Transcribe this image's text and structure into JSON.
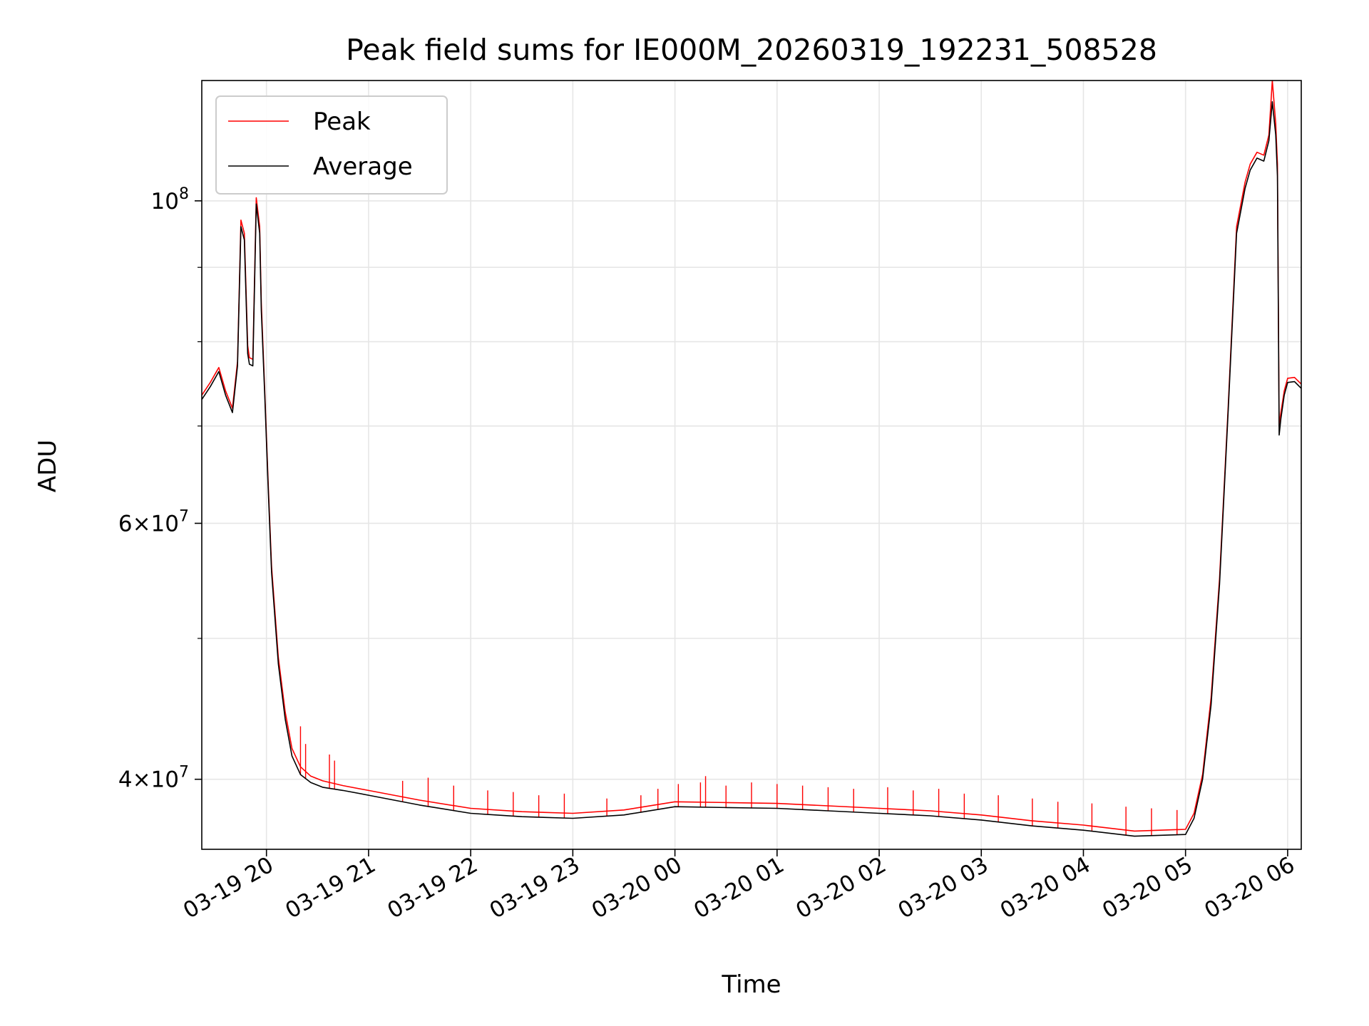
{
  "chart_data": {
    "type": "line",
    "title": "Peak field sums for IE000M_20260319_192231_508528",
    "xlabel": "Time",
    "ylabel": "ADU",
    "y_scale": "log",
    "ylim": [
      35800000,
      121000000
    ],
    "xlim": [
      "2026-03-19 19:22",
      "2026-03-20 06:08"
    ],
    "grid": true,
    "legend_position": "top-left",
    "x_ticks": [
      {
        "t": "2026-03-19 20:00",
        "label": "03-19 20"
      },
      {
        "t": "2026-03-19 21:00",
        "label": "03-19 21"
      },
      {
        "t": "2026-03-19 22:00",
        "label": "03-19 22"
      },
      {
        "t": "2026-03-19 23:00",
        "label": "03-19 23"
      },
      {
        "t": "2026-03-20 00:00",
        "label": "03-20 00"
      },
      {
        "t": "2026-03-20 01:00",
        "label": "03-20 01"
      },
      {
        "t": "2026-03-20 02:00",
        "label": "03-20 02"
      },
      {
        "t": "2026-03-20 03:00",
        "label": "03-20 03"
      },
      {
        "t": "2026-03-20 04:00",
        "label": "03-20 04"
      },
      {
        "t": "2026-03-20 05:00",
        "label": "03-20 05"
      },
      {
        "t": "2026-03-20 06:00",
        "label": "03-20 06"
      }
    ],
    "y_major_ticks": [
      {
        "value": 40000000,
        "mantissa": "4",
        "base": "10",
        "exp": "7"
      },
      {
        "value": 60000000,
        "mantissa": "6",
        "base": "10",
        "exp": "7"
      },
      {
        "value": 100000000,
        "mantissa": "",
        "base": "10",
        "exp": "8"
      }
    ],
    "y_minor_ticks": [
      50000000,
      70000000,
      80000000,
      90000000
    ],
    "series": [
      {
        "name": "Peak",
        "color": "#ff0000",
        "x": [
          "2026-03-19 19:22",
          "2026-03-19 19:27",
          "2026-03-19 19:32",
          "2026-03-19 19:36",
          "2026-03-19 19:40",
          "2026-03-19 19:43",
          "2026-03-19 19:45",
          "2026-03-19 19:47",
          "2026-03-19 19:49",
          "2026-03-19 19:50",
          "2026-03-19 19:52",
          "2026-03-19 19:54",
          "2026-03-19 19:56",
          "2026-03-19 19:57",
          "2026-03-19 19:59",
          "2026-03-19 20:01",
          "2026-03-19 20:03",
          "2026-03-19 20:07",
          "2026-03-19 20:11",
          "2026-03-19 20:15",
          "2026-03-19 20:20",
          "2026-03-19 20:26",
          "2026-03-19 20:33",
          "2026-03-19 20:45",
          "2026-03-19 21:00",
          "2026-03-19 21:30",
          "2026-03-19 22:00",
          "2026-03-19 22:30",
          "2026-03-19 23:00",
          "2026-03-19 23:30",
          "2026-03-20 00:00",
          "2026-03-20 00:30",
          "2026-03-20 01:00",
          "2026-03-20 01:30",
          "2026-03-20 02:00",
          "2026-03-20 02:30",
          "2026-03-20 03:00",
          "2026-03-20 03:30",
          "2026-03-20 04:00",
          "2026-03-20 04:30",
          "2026-03-20 05:00",
          "2026-03-20 05:05",
          "2026-03-20 05:10",
          "2026-03-20 05:15",
          "2026-03-20 05:20",
          "2026-03-20 05:25",
          "2026-03-20 05:30",
          "2026-03-20 05:35",
          "2026-03-20 05:38",
          "2026-03-20 05:42",
          "2026-03-20 05:46",
          "2026-03-20 05:49",
          "2026-03-20 05:51",
          "2026-03-20 05:53",
          "2026-03-20 05:54",
          "2026-03-20 05:55",
          "2026-03-20 05:56",
          "2026-03-20 05:58",
          "2026-03-20 06:00",
          "2026-03-20 06:04",
          "2026-03-20 06:08"
        ],
        "values": [
          73500000,
          75000000,
          76800000,
          74000000,
          72000000,
          77500000,
          97000000,
          95000000,
          79500000,
          78000000,
          77800000,
          100500000,
          96000000,
          85000000,
          74000000,
          64000000,
          56000000,
          48500000,
          44500000,
          42000000,
          40800000,
          40200000,
          39900000,
          39600000,
          39300000,
          38700000,
          38200000,
          38000000,
          37900000,
          38100000,
          38600000,
          38550000,
          38500000,
          38350000,
          38200000,
          38050000,
          37800000,
          37450000,
          37200000,
          36850000,
          36950000,
          37900000,
          40300000,
          45500000,
          55000000,
          72000000,
          96000000,
          103000000,
          106000000,
          108000000,
          107500000,
          111000000,
          121000000,
          113000000,
          106000000,
          70000000,
          71500000,
          74000000,
          75500000,
          75600000,
          74800000
        ]
      },
      {
        "name": "Average",
        "color": "#000000",
        "x": [
          "2026-03-19 19:22",
          "2026-03-19 19:27",
          "2026-03-19 19:32",
          "2026-03-19 19:36",
          "2026-03-19 19:40",
          "2026-03-19 19:43",
          "2026-03-19 19:45",
          "2026-03-19 19:47",
          "2026-03-19 19:49",
          "2026-03-19 19:50",
          "2026-03-19 19:52",
          "2026-03-19 19:54",
          "2026-03-19 19:56",
          "2026-03-19 19:57",
          "2026-03-19 19:59",
          "2026-03-19 20:01",
          "2026-03-19 20:03",
          "2026-03-19 20:07",
          "2026-03-19 20:11",
          "2026-03-19 20:15",
          "2026-03-19 20:20",
          "2026-03-19 20:26",
          "2026-03-19 20:33",
          "2026-03-19 20:45",
          "2026-03-19 21:00",
          "2026-03-19 21:30",
          "2026-03-19 22:00",
          "2026-03-19 22:30",
          "2026-03-19 23:00",
          "2026-03-19 23:30",
          "2026-03-20 00:00",
          "2026-03-20 00:30",
          "2026-03-20 01:00",
          "2026-03-20 01:30",
          "2026-03-20 02:00",
          "2026-03-20 02:30",
          "2026-03-20 03:00",
          "2026-03-20 03:30",
          "2026-03-20 04:00",
          "2026-03-20 04:30",
          "2026-03-20 05:00",
          "2026-03-20 05:05",
          "2026-03-20 05:10",
          "2026-03-20 05:15",
          "2026-03-20 05:20",
          "2026-03-20 05:25",
          "2026-03-20 05:30",
          "2026-03-20 05:35",
          "2026-03-20 05:38",
          "2026-03-20 05:42",
          "2026-03-20 05:46",
          "2026-03-20 05:49",
          "2026-03-20 05:51",
          "2026-03-20 05:53",
          "2026-03-20 05:54",
          "2026-03-20 05:55",
          "2026-03-20 05:56",
          "2026-03-20 05:58",
          "2026-03-20 06:00",
          "2026-03-20 06:04",
          "2026-03-20 06:08"
        ],
        "values": [
          73000000,
          74500000,
          76300000,
          73500000,
          71500000,
          77000000,
          96000000,
          94000000,
          78500000,
          77200000,
          77000000,
          99500000,
          95000000,
          84000000,
          73500000,
          63500000,
          55500000,
          48000000,
          44000000,
          41500000,
          40300000,
          39800000,
          39500000,
          39300000,
          39000000,
          38400000,
          37900000,
          37700000,
          37600000,
          37800000,
          38300000,
          38250000,
          38200000,
          38050000,
          37900000,
          37750000,
          37500000,
          37150000,
          36900000,
          36550000,
          36650000,
          37600000,
          40000000,
          45000000,
          54500000,
          71500000,
          95000000,
          102000000,
          105000000,
          107000000,
          106500000,
          110000000,
          117000000,
          111000000,
          104000000,
          69000000,
          70800000,
          73500000,
          75000000,
          75100000,
          74300000
        ]
      }
    ],
    "peak_spikes": [
      {
        "t": "2026-03-19 20:20",
        "value": 43500000
      },
      {
        "t": "2026-03-19 20:23",
        "value": 42300000
      },
      {
        "t": "2026-03-19 20:37",
        "value": 41600000
      },
      {
        "t": "2026-03-19 20:40",
        "value": 41200000
      },
      {
        "t": "2026-03-19 21:35",
        "value": 40100000
      },
      {
        "t": "2026-03-19 21:20",
        "value": 39900000
      },
      {
        "t": "2026-03-19 21:50",
        "value": 39600000
      },
      {
        "t": "2026-03-19 22:10",
        "value": 39300000
      },
      {
        "t": "2026-03-19 22:25",
        "value": 39200000
      },
      {
        "t": "2026-03-19 22:40",
        "value": 39000000
      },
      {
        "t": "2026-03-19 22:55",
        "value": 39100000
      },
      {
        "t": "2026-03-19 23:20",
        "value": 38800000
      },
      {
        "t": "2026-03-19 23:40",
        "value": 39000000
      },
      {
        "t": "2026-03-19 23:50",
        "value": 39400000
      },
      {
        "t": "2026-03-20 00:02",
        "value": 39700000
      },
      {
        "t": "2026-03-20 00:15",
        "value": 39800000
      },
      {
        "t": "2026-03-20 00:18",
        "value": 40200000
      },
      {
        "t": "2026-03-20 00:30",
        "value": 39600000
      },
      {
        "t": "2026-03-20 00:45",
        "value": 39800000
      },
      {
        "t": "2026-03-20 01:00",
        "value": 39700000
      },
      {
        "t": "2026-03-20 01:15",
        "value": 39600000
      },
      {
        "t": "2026-03-20 01:30",
        "value": 39500000
      },
      {
        "t": "2026-03-20 01:45",
        "value": 39400000
      },
      {
        "t": "2026-03-20 02:05",
        "value": 39500000
      },
      {
        "t": "2026-03-20 02:20",
        "value": 39300000
      },
      {
        "t": "2026-03-20 02:35",
        "value": 39400000
      },
      {
        "t": "2026-03-20 02:50",
        "value": 39100000
      },
      {
        "t": "2026-03-20 03:10",
        "value": 39000000
      },
      {
        "t": "2026-03-20 03:30",
        "value": 38800000
      },
      {
        "t": "2026-03-20 03:45",
        "value": 38600000
      },
      {
        "t": "2026-03-20 04:05",
        "value": 38500000
      },
      {
        "t": "2026-03-20 04:25",
        "value": 38300000
      },
      {
        "t": "2026-03-20 04:40",
        "value": 38200000
      },
      {
        "t": "2026-03-20 04:55",
        "value": 38100000
      }
    ]
  }
}
